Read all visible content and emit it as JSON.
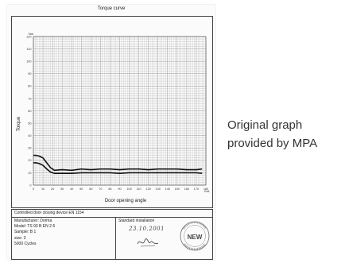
{
  "document": {
    "device_label": "Controlled door closing device EN 1154",
    "manufacturer": "Manufacturer: Dorma",
    "model": "Model: TS 93 B EN 2-5",
    "sample": "Sample: B 1",
    "size": "size: 3",
    "cycles": "5000 Cycles",
    "installation_label": "Standard installation",
    "installation_date": "23.10.2001",
    "stamp_text": "NEW"
  },
  "caption": {
    "line1": "Original graph",
    "line2": "provided by MPA"
  },
  "colors": {
    "grid": "#9a9a9a",
    "curve": "#111111"
  },
  "chart_data": {
    "type": "line",
    "title": "Torque curve",
    "xlabel": "Door opening angle",
    "ylabel": "Torque",
    "x_unit": "Grd",
    "y_unit": "Nm",
    "xlim": [
      0,
      180
    ],
    "ylim": [
      0,
      120
    ],
    "x_ticks": [
      "0",
      "10",
      "20",
      "30",
      "40",
      "50",
      "60",
      "70",
      "80",
      "90",
      "100",
      "110",
      "120",
      "130",
      "140",
      "150",
      "160",
      "170",
      "180"
    ],
    "y_ticks": [
      "0",
      "10",
      "20",
      "30",
      "40",
      "50",
      "60",
      "70",
      "80",
      "90",
      "100",
      "110",
      "120"
    ],
    "grid": true,
    "series": [
      {
        "x": [
          0,
          3,
          6,
          10,
          14,
          18,
          22,
          30,
          40,
          50,
          60,
          70,
          80,
          90,
          100,
          110,
          120,
          130,
          140,
          150,
          160,
          170,
          176
        ],
        "values": [
          24,
          24,
          23.5,
          22,
          18,
          14,
          12,
          12.5,
          12,
          13,
          12.5,
          13,
          13,
          12.5,
          13,
          13,
          12.5,
          13,
          13,
          13,
          12.5,
          12.5,
          13
        ]
      },
      {
        "x": [
          0,
          3,
          6,
          10,
          14,
          18,
          22,
          30,
          40,
          50,
          60,
          70,
          80,
          90,
          100,
          110,
          120,
          130,
          140,
          150,
          160,
          170,
          176
        ],
        "values": [
          18,
          18,
          17.5,
          16,
          13,
          10.5,
          9.5,
          9.5,
          9.5,
          10,
          10,
          10,
          10,
          9.5,
          10,
          10,
          10,
          10,
          10,
          10,
          10,
          10,
          9.5
        ]
      }
    ]
  }
}
